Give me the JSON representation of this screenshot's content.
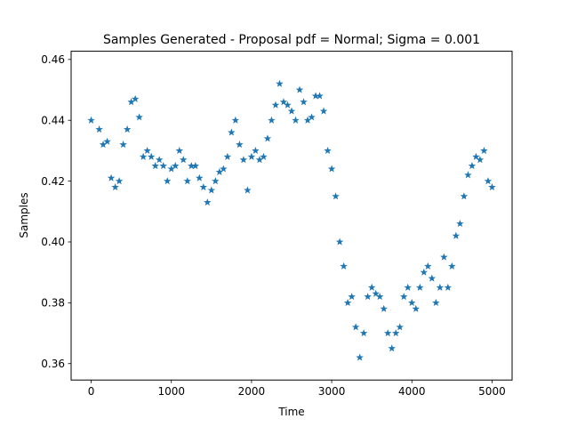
{
  "chart_data": {
    "type": "scatter",
    "marker": "star",
    "title": "Samples Generated - Proposal pdf = Normal; Sigma = 0.001",
    "xlabel": "Time",
    "ylabel": "Samples",
    "xlim": [
      -250,
      5250
    ],
    "ylim": [
      0.3546,
      0.4627
    ],
    "xticks": [
      0,
      1000,
      2000,
      3000,
      4000,
      5000
    ],
    "xtick_labels": [
      "0",
      "1000",
      "2000",
      "3000",
      "4000",
      "5000"
    ],
    "yticks": [
      0.36,
      0.38,
      0.4,
      0.42,
      0.44,
      0.46
    ],
    "ytick_labels": [
      "0.36",
      "0.38",
      "0.40",
      "0.42",
      "0.44",
      "0.46"
    ],
    "grid": false,
    "legend": "none",
    "series_color": "#1f77b4",
    "noise_band": 0.0035,
    "series": [
      {
        "x": [
          0,
          100,
          150,
          200,
          250,
          300,
          350,
          400,
          450,
          500,
          550,
          600,
          650,
          700,
          750,
          800,
          850,
          900,
          950,
          1000,
          1050,
          1100,
          1150,
          1200,
          1250,
          1300,
          1350,
          1400,
          1450,
          1500,
          1550,
          1600,
          1650,
          1700,
          1750,
          1800,
          1850,
          1900,
          1950,
          2000,
          2050,
          2100,
          2150,
          2200,
          2250,
          2300,
          2350,
          2400,
          2450,
          2500,
          2550,
          2600,
          2650,
          2700,
          2750,
          2800,
          2850,
          2900,
          2950,
          3000,
          3050,
          3100,
          3150,
          3200,
          3250,
          3300,
          3350,
          3400,
          3450,
          3500,
          3550,
          3600,
          3650,
          3700,
          3750,
          3800,
          3850,
          3900,
          3950,
          4000,
          4050,
          4100,
          4150,
          4200,
          4250,
          4300,
          4350,
          4400,
          4450,
          4500,
          4550,
          4600,
          4650,
          4700,
          4750,
          4800,
          4850,
          4900,
          4950,
          5000
        ],
        "y": [
          0.44,
          0.437,
          0.432,
          0.433,
          0.421,
          0.418,
          0.42,
          0.432,
          0.437,
          0.446,
          0.447,
          0.441,
          0.428,
          0.43,
          0.428,
          0.425,
          0.427,
          0.425,
          0.42,
          0.424,
          0.425,
          0.43,
          0.427,
          0.42,
          0.425,
          0.425,
          0.421,
          0.418,
          0.413,
          0.417,
          0.42,
          0.423,
          0.424,
          0.428,
          0.436,
          0.44,
          0.432,
          0.427,
          0.417,
          0.428,
          0.43,
          0.427,
          0.428,
          0.434,
          0.44,
          0.445,
          0.452,
          0.446,
          0.445,
          0.443,
          0.44,
          0.45,
          0.446,
          0.44,
          0.441,
          0.448,
          0.448,
          0.443,
          0.43,
          0.424,
          0.415,
          0.4,
          0.392,
          0.38,
          0.382,
          0.372,
          0.362,
          0.37,
          0.382,
          0.385,
          0.383,
          0.382,
          0.378,
          0.37,
          0.365,
          0.37,
          0.372,
          0.382,
          0.385,
          0.38,
          0.378,
          0.385,
          0.39,
          0.392,
          0.388,
          0.38,
          0.385,
          0.395,
          0.385,
          0.392,
          0.402,
          0.406,
          0.415,
          0.422,
          0.425,
          0.428,
          0.427,
          0.43,
          0.42,
          0.418
        ]
      }
    ]
  }
}
